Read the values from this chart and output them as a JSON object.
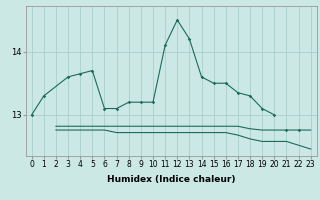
{
  "title": "",
  "xlabel": "Humidex (Indice chaleur)",
  "bg_color": "#cce8e4",
  "grid_color": "#aad0cc",
  "line_color": "#1a6b5a",
  "s0x": [
    0,
    1,
    3,
    4,
    5,
    6,
    7,
    8,
    9,
    10,
    11,
    12,
    13,
    14,
    15,
    16,
    17,
    18,
    19,
    20
  ],
  "s0y": [
    13.0,
    13.3,
    13.6,
    13.65,
    13.7,
    13.1,
    13.1,
    13.2,
    13.2,
    13.2,
    14.1,
    14.5,
    14.2,
    13.6,
    13.5,
    13.5,
    13.35,
    13.3,
    13.1,
    13.0
  ],
  "s1x": [
    2,
    3,
    4,
    5,
    6,
    7,
    8,
    9,
    10,
    11,
    12,
    13,
    14,
    15,
    16,
    17,
    18,
    19,
    20,
    21,
    22,
    23
  ],
  "s1y": [
    12.82,
    12.82,
    12.82,
    12.82,
    12.82,
    12.82,
    12.82,
    12.82,
    12.82,
    12.82,
    12.82,
    12.82,
    12.82,
    12.82,
    12.82,
    12.82,
    12.78,
    12.76,
    12.76,
    12.76,
    12.76,
    12.76
  ],
  "s2x": [
    2,
    3,
    4,
    5,
    6,
    7,
    8,
    9,
    10,
    11,
    12,
    13,
    14,
    15,
    16,
    17,
    18,
    19,
    20,
    21,
    22,
    23
  ],
  "s2y": [
    12.76,
    12.76,
    12.76,
    12.76,
    12.76,
    12.72,
    12.72,
    12.72,
    12.72,
    12.72,
    12.72,
    12.72,
    12.72,
    12.72,
    12.72,
    12.68,
    12.62,
    12.58,
    12.58,
    12.58,
    12.52,
    12.46
  ],
  "mark0x": [
    0,
    1
  ],
  "mark0y": [
    13.0,
    13.3
  ],
  "mark2x": [
    21,
    22
  ],
  "mark2y": [
    12.76,
    12.76
  ],
  "yticks": [
    13,
    14
  ],
  "ylim": [
    12.35,
    14.72
  ],
  "xlim": [
    -0.5,
    23.5
  ],
  "xlabel_fontsize": 6.5,
  "tick_fontsize": 5.5
}
